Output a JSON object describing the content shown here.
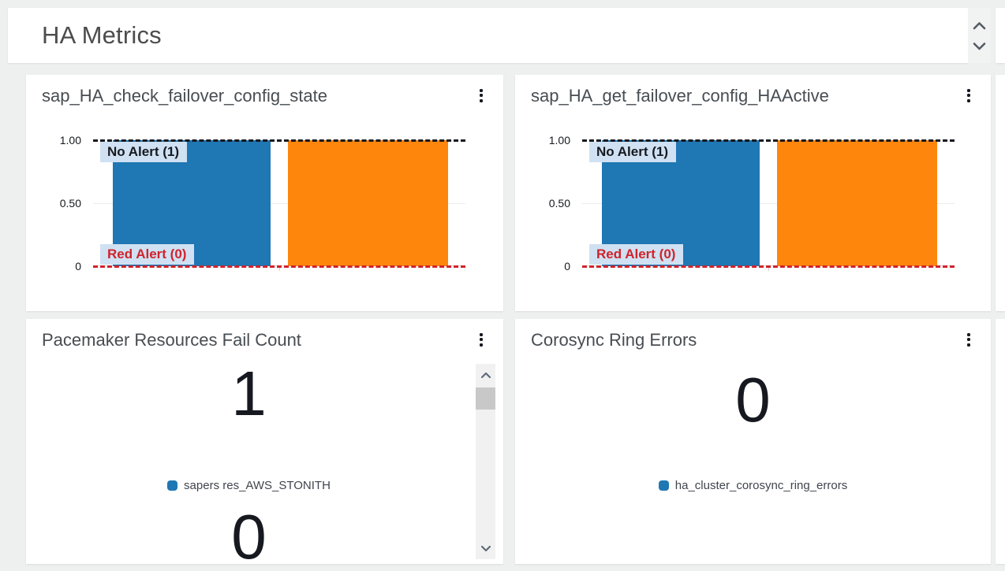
{
  "header": {
    "title": "HA Metrics"
  },
  "chart_data": [
    {
      "type": "bar",
      "title": "sap_HA_check_failover_config_state",
      "series": [
        {
          "color": "#1f77b4",
          "values": [
            1
          ]
        },
        {
          "color": "#ff860d",
          "values": [
            1
          ]
        }
      ],
      "ylim": [
        0,
        1
      ],
      "y_ticks": [
        1.0,
        0.5,
        0
      ],
      "y_tick_labels": [
        "1.00",
        "0.50",
        "0"
      ],
      "grid": true,
      "legend_position": "none",
      "annotations": [
        {
          "label": "No Alert (1)",
          "value": 1,
          "line_style": "dashed",
          "color": "#16191f",
          "text_color": "#16191f",
          "label_bg": "#cfe1f2"
        },
        {
          "label": "Red Alert (0)",
          "value": 0,
          "line_style": "dashed",
          "color": "#d0232b",
          "text_color": "#d0232b",
          "label_bg": "#cfe1f2"
        }
      ]
    },
    {
      "type": "bar",
      "title": "sap_HA_get_failover_config_HAActive",
      "series": [
        {
          "color": "#1f77b4",
          "values": [
            1
          ]
        },
        {
          "color": "#ff860d",
          "values": [
            1
          ]
        }
      ],
      "ylim": [
        0,
        1
      ],
      "y_ticks": [
        1.0,
        0.5,
        0
      ],
      "y_tick_labels": [
        "1.00",
        "0.50",
        "0"
      ],
      "grid": true,
      "legend_position": "none",
      "annotations": [
        {
          "label": "No Alert (1)",
          "value": 1,
          "line_style": "dashed",
          "color": "#16191f",
          "text_color": "#16191f",
          "label_bg": "#cfe1f2"
        },
        {
          "label": "Red Alert (0)",
          "value": 0,
          "line_style": "dashed",
          "color": "#d0232b",
          "text_color": "#d0232b",
          "label_bg": "#cfe1f2"
        }
      ]
    },
    {
      "type": "single-value",
      "title": "Pacemaker Resources Fail Count",
      "values": [
        {
          "value": 1,
          "legend": "sapers res_AWS_STONITH",
          "color": "#1f77b4"
        },
        {
          "value": 0,
          "legend": null,
          "color": null
        }
      ]
    },
    {
      "type": "single-value",
      "title": "Corosync Ring Errors",
      "values": [
        {
          "value": 0,
          "legend": "ha_cluster_corosync_ring_errors",
          "color": "#1f77b4"
        }
      ]
    }
  ]
}
